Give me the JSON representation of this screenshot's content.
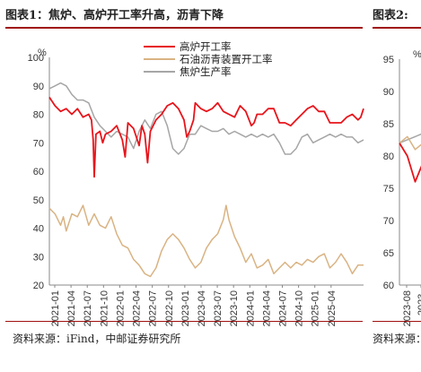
{
  "left_figure": {
    "title": "图表1：焦炉、高炉开工率升高，沥青下降",
    "source": "资料来源：iFind，中邮证券研究所"
  },
  "right_figure": {
    "title": "图表2:",
    "source": "资料来源："
  },
  "colors": {
    "rule": "#a01010",
    "blast": "#e8141b",
    "asphalt": "#d9b383",
    "coke": "#a6a6a6"
  },
  "chart_data": [
    {
      "type": "line",
      "title": "",
      "xlabel": "",
      "ylabel": "",
      "y_unit_label": "%",
      "ylim": [
        20,
        100
      ],
      "yticks": [
        20,
        30,
        40,
        50,
        60,
        70,
        80,
        90,
        100
      ],
      "x_tick_labels": [
        "2021-01",
        "2021-04",
        "2021-07",
        "2021-10",
        "2022-01",
        "2022-04",
        "2022-07",
        "2022-10",
        "2023-01",
        "2023-04",
        "2023-07",
        "2023-10",
        "2024-01",
        "2024-04",
        "2024-07",
        "2024-10",
        "2025-01",
        "2025-04"
      ],
      "x_range_months": [
        0,
        56
      ],
      "legend_position": "top-center",
      "grid": false,
      "series": [
        {
          "name": "高炉开工率",
          "color": "#e8141b",
          "points": [
            [
              0,
              86
            ],
            [
              1,
              83
            ],
            [
              2,
              81
            ],
            [
              3,
              82
            ],
            [
              4,
              80
            ],
            [
              5,
              82
            ],
            [
              6,
              79
            ],
            [
              7,
              80
            ],
            [
              7.5,
              78
            ],
            [
              7.8,
              71
            ],
            [
              8,
              58
            ],
            [
              8.3,
              73
            ],
            [
              9,
              74
            ],
            [
              9.5,
              70
            ],
            [
              10,
              73
            ],
            [
              11,
              74
            ],
            [
              12,
              76
            ],
            [
              13,
              71
            ],
            [
              13.5,
              65
            ],
            [
              14,
              77
            ],
            [
              15,
              75
            ],
            [
              16,
              69
            ],
            [
              16.5,
              76
            ],
            [
              17,
              73
            ],
            [
              17.5,
              63
            ],
            [
              18,
              74
            ],
            [
              19,
              78
            ],
            [
              20,
              80
            ],
            [
              21,
              83
            ],
            [
              22,
              84
            ],
            [
              23,
              82
            ],
            [
              24,
              78
            ],
            [
              24.5,
              72
            ],
            [
              25,
              74
            ],
            [
              25.7,
              78
            ],
            [
              26,
              84
            ],
            [
              27,
              82
            ],
            [
              28,
              81
            ],
            [
              29,
              82
            ],
            [
              30,
              84
            ],
            [
              31,
              81
            ],
            [
              32,
              80
            ],
            [
              33,
              79
            ],
            [
              34,
              83
            ],
            [
              35,
              81
            ],
            [
              36,
              76
            ],
            [
              36.5,
              77
            ],
            [
              37,
              80
            ],
            [
              38,
              80
            ],
            [
              39,
              82
            ],
            [
              40,
              82
            ],
            [
              41,
              77
            ],
            [
              42,
              77
            ],
            [
              43,
              76
            ],
            [
              44,
              78
            ],
            [
              45,
              80
            ],
            [
              46,
              82
            ],
            [
              47,
              83
            ],
            [
              48,
              81
            ],
            [
              49,
              81
            ],
            [
              50,
              77
            ],
            [
              51,
              77
            ],
            [
              52,
              77
            ],
            [
              53,
              79
            ],
            [
              54,
              80
            ],
            [
              55,
              78
            ],
            [
              55.5,
              79
            ],
            [
              56,
              82
            ]
          ]
        },
        {
          "name": "石油沥青装置开工率",
          "color": "#d9b383",
          "points": [
            [
              0,
              47
            ],
            [
              1,
              45
            ],
            [
              2,
              41
            ],
            [
              2.5,
              44
            ],
            [
              3,
              39
            ],
            [
              4,
              45
            ],
            [
              5,
              44
            ],
            [
              6,
              48
            ],
            [
              7,
              41
            ],
            [
              8,
              45
            ],
            [
              9,
              41
            ],
            [
              10,
              40
            ],
            [
              11,
              44
            ],
            [
              12,
              38
            ],
            [
              13,
              34
            ],
            [
              14,
              33
            ],
            [
              15,
              29
            ],
            [
              16,
              27
            ],
            [
              17,
              24
            ],
            [
              18,
              23
            ],
            [
              19,
              26
            ],
            [
              20,
              32
            ],
            [
              21,
              36
            ],
            [
              22,
              38
            ],
            [
              23,
              36
            ],
            [
              24,
              33
            ],
            [
              25,
              29
            ],
            [
              26,
              26
            ],
            [
              27,
              28
            ],
            [
              28,
              33
            ],
            [
              29,
              36
            ],
            [
              30,
              38
            ],
            [
              31,
              43
            ],
            [
              31.5,
              48
            ],
            [
              32,
              43
            ],
            [
              33,
              37
            ],
            [
              34,
              33
            ],
            [
              35,
              28
            ],
            [
              36,
              31
            ],
            [
              37,
              26
            ],
            [
              38,
              27
            ],
            [
              39,
              29
            ],
            [
              40,
              24
            ],
            [
              41,
              26
            ],
            [
              42,
              28
            ],
            [
              43,
              26
            ],
            [
              44,
              28
            ],
            [
              45,
              27
            ],
            [
              46,
              29
            ],
            [
              47,
              28
            ],
            [
              48,
              30
            ],
            [
              49,
              31
            ],
            [
              50,
              26
            ],
            [
              51,
              28
            ],
            [
              52,
              31
            ],
            [
              53,
              28
            ],
            [
              54,
              24
            ],
            [
              55,
              27
            ],
            [
              56,
              27
            ]
          ]
        },
        {
          "name": "焦炉生产率",
          "color": "#a6a6a6",
          "points": [
            [
              0,
              89
            ],
            [
              1,
              90
            ],
            [
              2,
              91
            ],
            [
              3,
              90
            ],
            [
              4,
              87
            ],
            [
              5,
              85
            ],
            [
              6,
              85
            ],
            [
              7,
              84
            ],
            [
              8,
              79
            ],
            [
              9,
              76
            ],
            [
              10,
              74
            ],
            [
              11,
              72
            ],
            [
              12,
              74
            ],
            [
              13,
              73
            ],
            [
              14,
              72
            ],
            [
              15,
              68
            ],
            [
              16,
              74
            ],
            [
              17,
              78
            ],
            [
              18,
              75
            ],
            [
              19,
              80
            ],
            [
              20,
              81
            ],
            [
              21,
              76
            ],
            [
              22,
              68
            ],
            [
              23,
              66
            ],
            [
              24,
              68
            ],
            [
              25,
              73
            ],
            [
              26,
              73
            ],
            [
              27,
              76
            ],
            [
              28,
              75
            ],
            [
              29,
              74
            ],
            [
              30,
              74
            ],
            [
              31,
              75
            ],
            [
              32,
              73
            ],
            [
              33,
              74
            ],
            [
              34,
              73
            ],
            [
              35,
              72
            ],
            [
              36,
              73
            ],
            [
              37,
              72
            ],
            [
              38,
              73
            ],
            [
              39,
              72
            ],
            [
              40,
              73
            ],
            [
              41,
              70
            ],
            [
              42,
              66
            ],
            [
              43,
              66
            ],
            [
              44,
              68
            ],
            [
              45,
              72
            ],
            [
              46,
              73
            ],
            [
              47,
              70
            ],
            [
              48,
              71
            ],
            [
              49,
              72
            ],
            [
              50,
              73
            ],
            [
              51,
              72
            ],
            [
              52,
              73
            ],
            [
              53,
              72
            ],
            [
              54,
              72
            ],
            [
              55,
              70
            ],
            [
              56,
              71
            ]
          ]
        }
      ]
    },
    {
      "type": "line",
      "title": "",
      "y_unit_label": "%",
      "ylim": [
        60,
        95
      ],
      "yticks": [
        60,
        65,
        70,
        75,
        80,
        85,
        90,
        95
      ],
      "x_tick_labels": [
        "2023-08",
        "2023-"
      ],
      "series": [
        {
          "name": "",
          "color": "#e8141b",
          "points": [
            [
              0,
              82
            ],
            [
              0.5,
              80
            ],
            [
              1,
              76
            ],
            [
              1.5,
              79
            ],
            [
              2,
              79
            ]
          ]
        },
        {
          "name": "",
          "color": "#d9b383",
          "points": [
            [
              0,
              82
            ],
            [
              0.5,
              83
            ],
            [
              1,
              81
            ],
            [
              1.5,
              82
            ],
            [
              2,
              87
            ]
          ]
        },
        {
          "name": "",
          "color": "#a6a6a6",
          "points": [
            [
              0,
              82
            ],
            [
              1,
              83
            ],
            [
              2,
              84
            ]
          ]
        }
      ]
    }
  ]
}
